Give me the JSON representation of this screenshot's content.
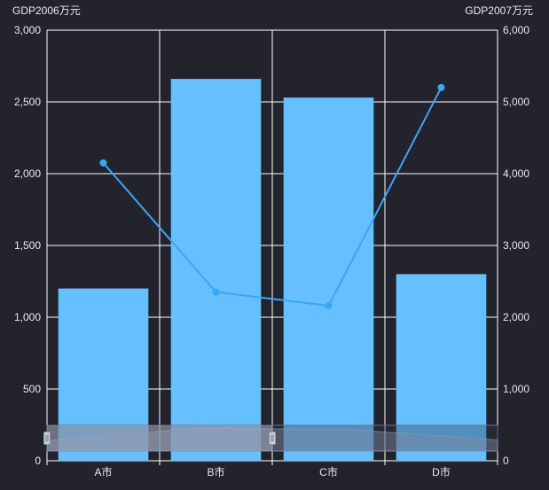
{
  "chart_data": {
    "type": "bar",
    "categories": [
      "A市",
      "B市",
      "C市",
      "D市"
    ],
    "series": [
      {
        "name": "GDP2006",
        "type": "bar",
        "axis": "left",
        "values": [
          1200,
          2660,
          2530,
          1300
        ],
        "color": "#66bfff"
      },
      {
        "name": "GDP2007",
        "type": "line",
        "axis": "right",
        "values": [
          4150,
          2350,
          2160,
          5200
        ],
        "color": "#3ba6f5"
      }
    ],
    "yAxisLeft": {
      "name": "GDP2006万元",
      "range": [
        0,
        3000
      ],
      "ticks": [
        0,
        500,
        1000,
        1500,
        2000,
        2500,
        3000
      ],
      "tick_labels": [
        "0",
        "500",
        "1,000",
        "1,500",
        "2,000",
        "2,500",
        "3,000"
      ]
    },
    "yAxisRight": {
      "name": "GDP2007万元",
      "range": [
        0,
        6000
      ],
      "ticks": [
        0,
        1000,
        2000,
        3000,
        4000,
        5000,
        6000
      ],
      "tick_labels": [
        "0",
        "1,000",
        "2,000",
        "3,000",
        "4,000",
        "5,000",
        "6,000"
      ]
    },
    "grid": true,
    "grid_color": "#ffffff",
    "background": "#23232d",
    "dataZoom": {
      "start": 0,
      "end": 50
    }
  }
}
